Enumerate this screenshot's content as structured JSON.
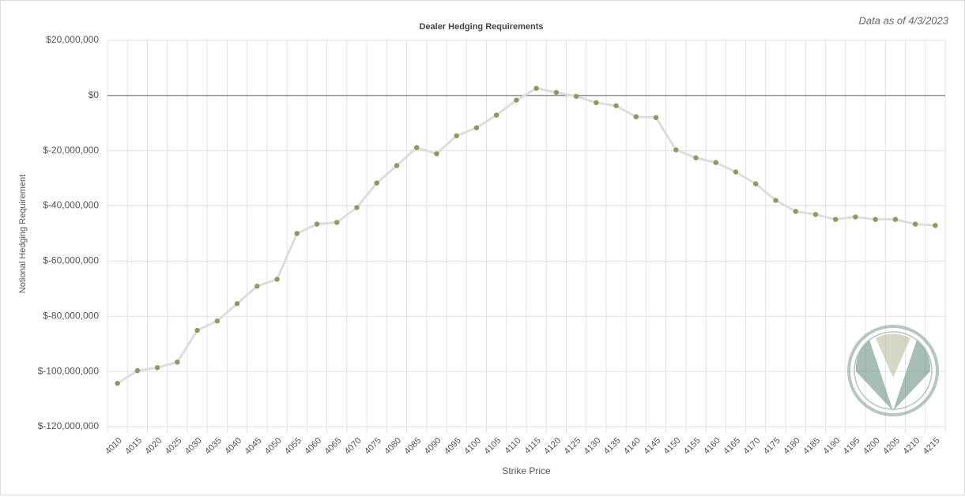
{
  "chart_data": {
    "type": "line",
    "title": "Dealer Hedging Requirements",
    "note": "Data as of 4/3/2023",
    "x_label": "Strike Price",
    "y_label": "Notional Hedging Requirement",
    "categories": [
      "4010",
      "4015",
      "4020",
      "4025",
      "4030",
      "4035",
      "4040",
      "4045",
      "4050",
      "4055",
      "4060",
      "4065",
      "4070",
      "4075",
      "4080",
      "4085",
      "4090",
      "4095",
      "4100",
      "4105",
      "4110",
      "4115",
      "4120",
      "4125",
      "4130",
      "4135",
      "4140",
      "4145",
      "4150",
      "4155",
      "4160",
      "4165",
      "4170",
      "4175",
      "4180",
      "4185",
      "4190",
      "4195",
      "4200",
      "4205",
      "4210",
      "4215"
    ],
    "values": [
      -104300000,
      -99700000,
      -98600000,
      -96600000,
      -85100000,
      -81700000,
      -75400000,
      -69100000,
      -66600000,
      -50000000,
      -46600000,
      -46000000,
      -40600000,
      -31700000,
      -25400000,
      -18900000,
      -21100000,
      -14600000,
      -11700000,
      -7100000,
      -1700000,
      2600000,
      1100000,
      -300000,
      -2600000,
      -3700000,
      -7700000,
      -8000000,
      -19700000,
      -22600000,
      -24300000,
      -27700000,
      -32000000,
      -38000000,
      -42000000,
      -43100000,
      -44900000,
      -44000000,
      -44900000,
      -44900000,
      -46600000,
      -47100000
    ],
    "color": "#8b9a5e",
    "line_color": "#dddddd",
    "ylim": [
      -120000000,
      20000000
    ],
    "yticks": [
      {
        "value": -120000000,
        "label": "$-120,000,000"
      },
      {
        "value": -100000000,
        "label": "$-100,000,000"
      },
      {
        "value": -80000000,
        "label": "$-80,000,000"
      },
      {
        "value": -60000000,
        "label": "$-60,000,000"
      },
      {
        "value": -40000000,
        "label": "$-40,000,000"
      },
      {
        "value": -20000000,
        "label": "$-20,000,000"
      },
      {
        "value": 0,
        "label": "$0"
      },
      {
        "value": 20000000,
        "label": "$20,000,000"
      }
    ],
    "grid": true
  }
}
